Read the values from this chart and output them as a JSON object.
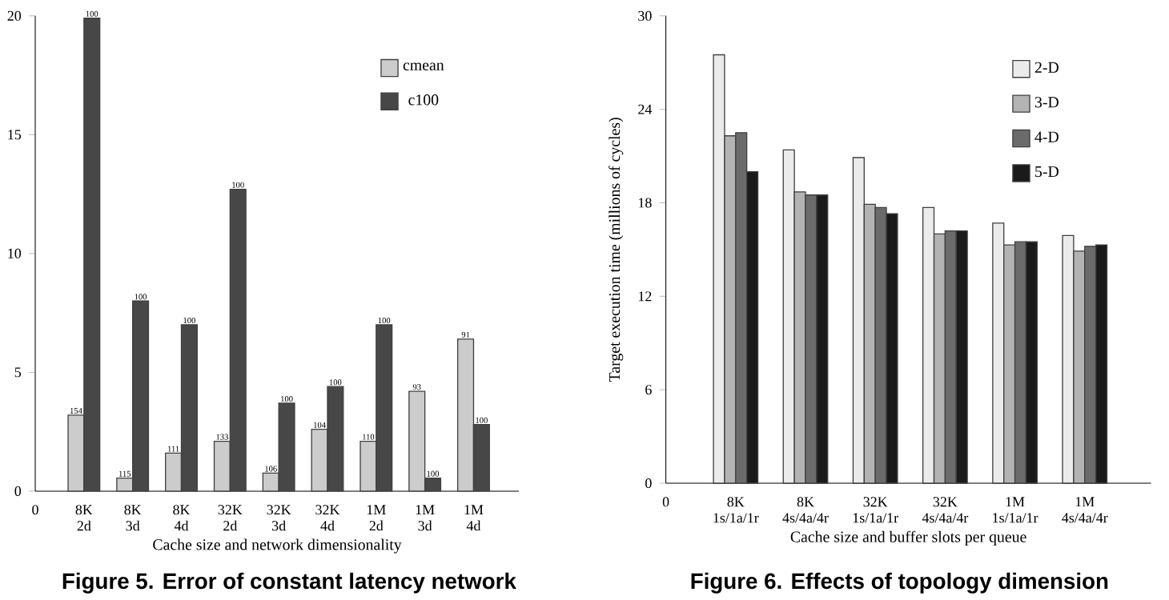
{
  "chart_data": [
    {
      "type": "bar",
      "title": "Figure 5. Error of constant latency network",
      "xlabel": "Cache size and network dimensionality",
      "categories": [
        "0",
        "8K 2d",
        "8K 3d",
        "8K 4d",
        "32K 2d",
        "32K 3d",
        "32K 4d",
        "1M 2d",
        "1M 3d",
        "1M 4d"
      ],
      "series": [
        {
          "name": "cmean",
          "color": "#cccccc",
          "values": [
            null,
            3.2,
            0.55,
            1.6,
            2.1,
            0.76,
            2.6,
            2.1,
            4.2,
            6.4
          ]
        },
        {
          "name": "c100",
          "color": "#474747",
          "values": [
            null,
            19.9,
            8.0,
            7.0,
            12.7,
            3.7,
            4.4,
            7.0,
            0.55,
            2.8
          ]
        }
      ],
      "annotations": [
        {
          "text": "154",
          "x": "8K 2d",
          "y": 3.2
        },
        {
          "text": "115",
          "x": "8K 3d",
          "y": 0.55
        },
        {
          "text": "111",
          "x": "8K 4d",
          "y": 1.6
        },
        {
          "text": "133",
          "x": "32K 2d",
          "y": 2.1
        },
        {
          "text": "106",
          "x": "32K 3d",
          "y": 0.76
        },
        {
          "text": "104",
          "x": "32K 4d",
          "y": 2.6
        },
        {
          "text": "110",
          "x": "1M 2d",
          "y": 2.1
        },
        {
          "text": "93",
          "x": "1M 3d",
          "y": 4.2
        },
        {
          "text": "91",
          "x": "1M 4d",
          "y": 6.4
        },
        {
          "text": "100",
          "x": "8K 2d",
          "y": 19.9
        },
        {
          "text": "100",
          "x": "8K 3d",
          "y": 8.0
        },
        {
          "text": "100",
          "x": "8K 4d",
          "y": 7.0
        },
        {
          "text": "100",
          "x": "32K 2d",
          "y": 12.7
        },
        {
          "text": "100",
          "x": "32K 3d",
          "y": 3.7
        },
        {
          "text": "100",
          "x": "32K 4d",
          "y": 4.4
        },
        {
          "text": "100",
          "x": "1M 2d",
          "y": 7.0
        },
        {
          "text": "100",
          "x": "1M 3d",
          "y": 0.55
        },
        {
          "text": "100",
          "x": "1M 4d",
          "y": 2.8
        }
      ],
      "ylim": [
        0,
        20
      ],
      "yticks": [
        0,
        5,
        10,
        15,
        20
      ],
      "legend": "top right"
    },
    {
      "type": "bar",
      "title": "Figure 6. Effects of topology dimension",
      "xlabel": "Cache size and buffer slots per queue",
      "ylabel": "Target execution time (millions of cycles)",
      "categories": [
        "0",
        "8K 1s/1a/1r",
        "8K 4s/4a/4r",
        "32K 1s/1a/1r",
        "32K 4s/4a/4r",
        "1M 1s/1a/1r",
        "1M 4s/4a/4r"
      ],
      "series": [
        {
          "name": "2-D",
          "color": "#ebebeb",
          "values": [
            null,
            27.5,
            21.4,
            20.9,
            17.7,
            16.7,
            15.9
          ]
        },
        {
          "name": "3-D",
          "color": "#b3b3b3",
          "values": [
            null,
            22.3,
            18.7,
            17.9,
            16.0,
            15.3,
            14.9
          ]
        },
        {
          "name": "4-D",
          "color": "#6b6b6b",
          "values": [
            null,
            22.5,
            18.5,
            17.7,
            16.2,
            15.5,
            15.2
          ]
        },
        {
          "name": "5-D",
          "color": "#1a1a1a",
          "values": [
            null,
            20.0,
            18.5,
            17.3,
            16.2,
            15.5,
            15.3
          ]
        }
      ],
      "ylim": [
        0,
        30
      ],
      "yticks": [
        0,
        6,
        12,
        18,
        24,
        30
      ],
      "legend": "top right"
    }
  ]
}
